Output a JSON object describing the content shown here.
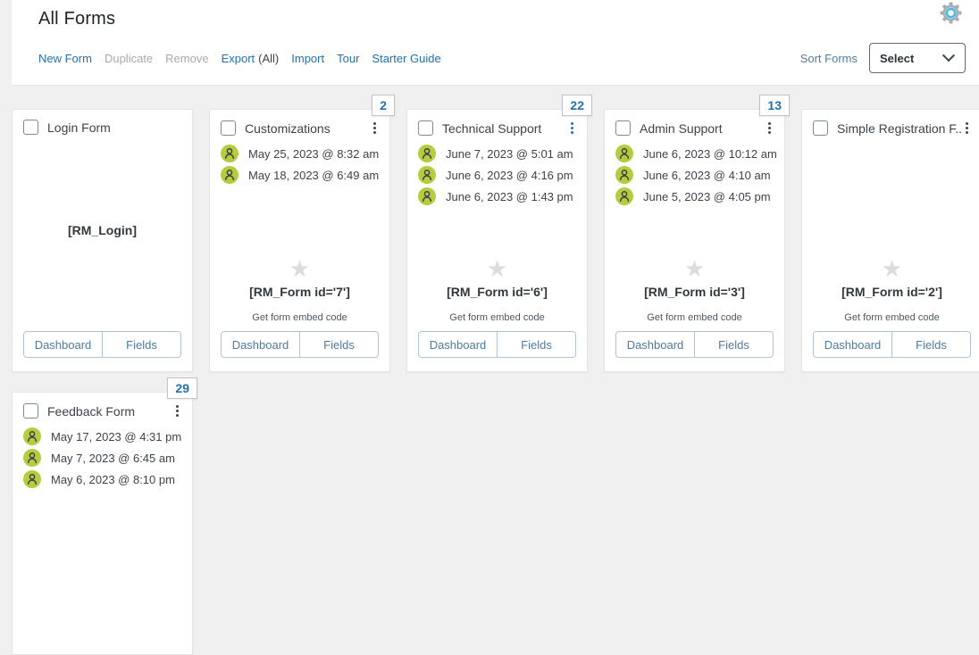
{
  "header": {
    "title": "All Forms"
  },
  "toolbar": {
    "links": [
      {
        "label": "New Form",
        "state": "enabled"
      },
      {
        "label": "Duplicate",
        "state": "disabled"
      },
      {
        "label": "Remove",
        "state": "disabled"
      },
      {
        "label": "Export",
        "suffix": "(All)",
        "state": "enabled"
      },
      {
        "label": "Import",
        "state": "enabled"
      },
      {
        "label": "Tour",
        "state": "enabled"
      },
      {
        "label": "Starter Guide",
        "state": "enabled"
      }
    ],
    "sort_label": "Sort Forms",
    "sort_select_value": "Select"
  },
  "icons": {
    "gear": "settings-gear-icon",
    "avatar": "user-avatar-icon",
    "kebab": "kebab-menu-icon",
    "star": "star-icon",
    "chevron": "chevron-down-icon"
  },
  "colors": {
    "accent_blue": "#2271b1",
    "disabled_gray": "#a7aaad",
    "avatar_green": "#b5cc3e",
    "page_background": "#f0f0f1",
    "button_blue": "#4f7a9f",
    "badge_border": "#c3c4c7",
    "gear_ring_cyan": "#41bce8"
  },
  "cards": [
    {
      "row": 1,
      "title": "Login Form",
      "variant": "login",
      "badge": null,
      "kebab": null,
      "entries": [],
      "star": false,
      "shortcode": "[RM_Login]",
      "embed_label": null,
      "buttons": [
        "Dashboard",
        "Fields"
      ]
    },
    {
      "row": 1,
      "title": "Customizations",
      "badge": "2",
      "kebab": "dark",
      "entries": [
        "May 25, 2023 @ 8:32 am",
        "May 18, 2023 @ 6:49 am"
      ],
      "star": true,
      "shortcode": "[RM_Form id='7']",
      "embed_label": "Get form embed code",
      "buttons": [
        "Dashboard",
        "Fields"
      ]
    },
    {
      "row": 1,
      "title": "Technical Support",
      "badge": "22",
      "kebab": "blue",
      "entries": [
        "June 7, 2023 @ 5:01 am",
        "June 6, 2023 @ 4:16 pm",
        "June 6, 2023 @ 1:43 pm"
      ],
      "star": true,
      "shortcode": "[RM_Form id='6']",
      "embed_label": "Get form embed code",
      "buttons": [
        "Dashboard",
        "Fields"
      ]
    },
    {
      "row": 1,
      "title": "Admin Support",
      "badge": "13",
      "kebab": "dark",
      "entries": [
        "June 6, 2023 @ 10:12 am",
        "June 6, 2023 @ 4:10 am",
        "June 5, 2023 @ 4:05 pm"
      ],
      "star": true,
      "shortcode": "[RM_Form id='3']",
      "embed_label": "Get form embed code",
      "buttons": [
        "Dashboard",
        "Fields"
      ]
    },
    {
      "row": 1,
      "title": "Simple Registration F...",
      "badge": null,
      "kebab": "dark",
      "entries": [],
      "star": true,
      "shortcode": "[RM_Form id='2']",
      "embed_label": "Get form embed code",
      "buttons": [
        "Dashboard",
        "Fields"
      ]
    },
    {
      "row": 2,
      "title": "Feedback Form",
      "badge": "29",
      "kebab": "dark",
      "entries": [
        "May 17, 2023 @ 4:31 pm",
        "May 7, 2023 @ 6:45 am",
        "May 6, 2023 @ 8:10 pm"
      ],
      "star": false,
      "shortcode": null,
      "embed_label": null,
      "buttons": []
    }
  ]
}
